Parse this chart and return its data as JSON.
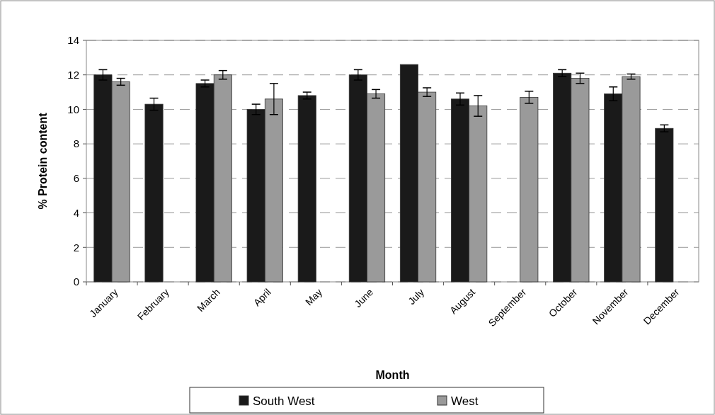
{
  "chart_data": {
    "type": "bar",
    "xlabel": "Month",
    "ylabel": "% Protein content",
    "categories": [
      "January",
      "February",
      "March",
      "April",
      "May",
      "June",
      "July",
      "August",
      "September",
      "October",
      "November",
      "December"
    ],
    "series": [
      {
        "name": "South West",
        "color": "#1a1a1a",
        "values": [
          12.0,
          10.3,
          11.5,
          10.0,
          10.8,
          12.0,
          12.6,
          10.6,
          null,
          12.1,
          10.9,
          8.9
        ],
        "errors": [
          0.3,
          0.35,
          0.2,
          0.3,
          0.2,
          0.3,
          null,
          0.35,
          null,
          0.2,
          0.4,
          0.2
        ]
      },
      {
        "name": "West",
        "color": "#9a9a9a",
        "values": [
          11.6,
          null,
          12.0,
          10.6,
          null,
          10.9,
          11.0,
          10.2,
          10.7,
          11.8,
          11.9,
          null
        ],
        "errors": [
          0.2,
          null,
          0.25,
          0.9,
          null,
          0.25,
          0.25,
          0.6,
          0.35,
          0.3,
          0.15,
          null
        ]
      }
    ],
    "ylim": [
      0,
      14
    ],
    "yticks": [
      0,
      2,
      4,
      6,
      8,
      10,
      12,
      14
    ],
    "grid": "y",
    "legend": "bottom"
  }
}
